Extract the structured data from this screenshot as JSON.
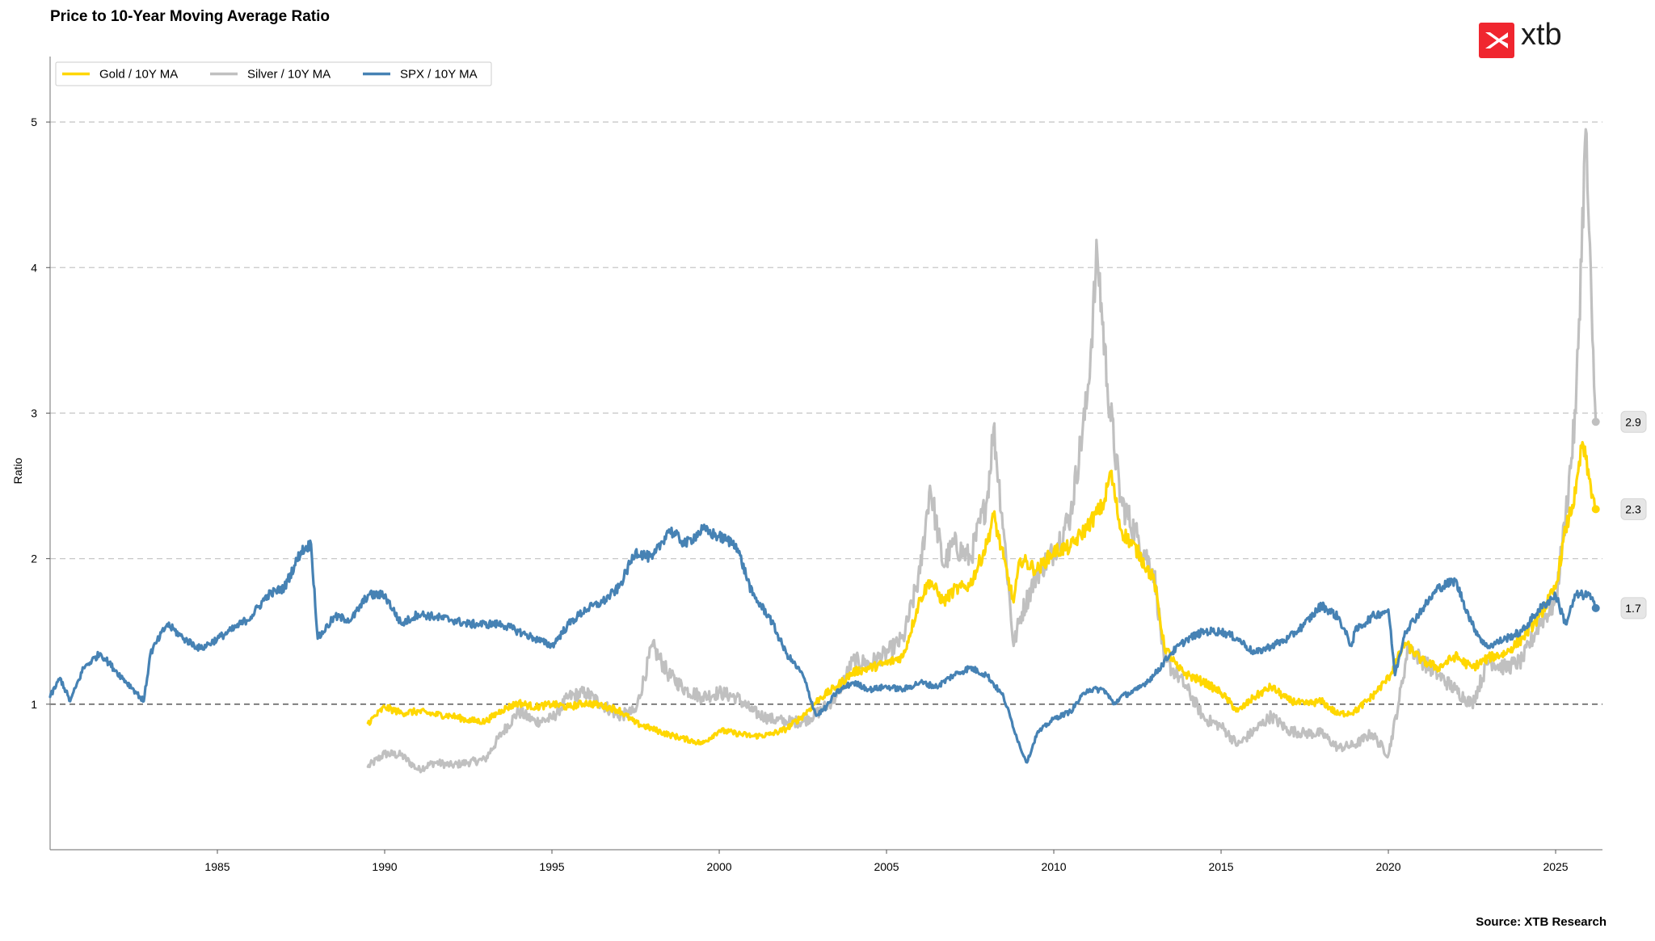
{
  "header": {
    "title": "Price to 10-Year Moving Average Ratio"
  },
  "footer": {
    "source": "Source: XTB Research"
  },
  "brand": {
    "name": "xtb",
    "color": "#f0262f"
  },
  "chart_data": {
    "type": "line",
    "title": "Price to 10-Year Moving Average Ratio",
    "xlabel": "",
    "ylabel": "Ratio",
    "xlim": [
      1980.0,
      2026.4
    ],
    "ylim": [
      0.0,
      5.45
    ],
    "xticks": [
      1985,
      1990,
      1995,
      2000,
      2005,
      2010,
      2015,
      2020,
      2025
    ],
    "xtick_labels": [
      "1985",
      "1990",
      "1995",
      "2000",
      "2005",
      "2010",
      "2015",
      "2020",
      "2025"
    ],
    "yticks": [
      1,
      2,
      3,
      4,
      5
    ],
    "ytick_labels": [
      "1",
      "2",
      "3",
      "4",
      "5"
    ],
    "grid": "horizontal dashed",
    "reference_line": {
      "y": 1,
      "style": "dashed"
    },
    "legend_position": "top-left",
    "series": [
      {
        "name": "Gold / 10Y MA",
        "color": "#FFD700",
        "end_label": "2.3",
        "points": [
          [
            1989.5,
            0.87
          ],
          [
            1990.0,
            0.98
          ],
          [
            1990.5,
            0.94
          ],
          [
            1991.0,
            0.95
          ],
          [
            1991.5,
            0.93
          ],
          [
            1992.0,
            0.92
          ],
          [
            1992.5,
            0.89
          ],
          [
            1993.0,
            0.88
          ],
          [
            1993.5,
            0.96
          ],
          [
            1994.0,
            1.01
          ],
          [
            1994.5,
            0.98
          ],
          [
            1995.0,
            1.0
          ],
          [
            1995.5,
            0.98
          ],
          [
            1996.0,
            1.01
          ],
          [
            1996.5,
            0.99
          ],
          [
            1997.0,
            0.96
          ],
          [
            1997.5,
            0.87
          ],
          [
            1998.0,
            0.83
          ],
          [
            1998.5,
            0.79
          ],
          [
            1999.0,
            0.76
          ],
          [
            1999.5,
            0.73
          ],
          [
            2000.0,
            0.82
          ],
          [
            2000.5,
            0.8
          ],
          [
            2001.0,
            0.78
          ],
          [
            2001.5,
            0.79
          ],
          [
            2002.0,
            0.83
          ],
          [
            2002.5,
            0.92
          ],
          [
            2003.0,
            1.04
          ],
          [
            2003.5,
            1.12
          ],
          [
            2004.0,
            1.22
          ],
          [
            2004.5,
            1.25
          ],
          [
            2005.0,
            1.28
          ],
          [
            2005.5,
            1.33
          ],
          [
            2006.0,
            1.72
          ],
          [
            2006.3,
            1.85
          ],
          [
            2006.7,
            1.7
          ],
          [
            2007.0,
            1.78
          ],
          [
            2007.5,
            1.82
          ],
          [
            2008.0,
            2.1
          ],
          [
            2008.2,
            2.3
          ],
          [
            2008.5,
            2.0
          ],
          [
            2008.8,
            1.7
          ],
          [
            2009.0,
            2.0
          ],
          [
            2009.5,
            1.92
          ],
          [
            2010.0,
            2.05
          ],
          [
            2010.5,
            2.08
          ],
          [
            2011.0,
            2.22
          ],
          [
            2011.5,
            2.38
          ],
          [
            2011.7,
            2.6
          ],
          [
            2012.0,
            2.2
          ],
          [
            2012.5,
            2.05
          ],
          [
            2013.0,
            1.85
          ],
          [
            2013.3,
            1.4
          ],
          [
            2013.7,
            1.25
          ],
          [
            2014.0,
            1.2
          ],
          [
            2014.5,
            1.15
          ],
          [
            2015.0,
            1.08
          ],
          [
            2015.5,
            0.95
          ],
          [
            2016.0,
            1.05
          ],
          [
            2016.5,
            1.12
          ],
          [
            2017.0,
            1.03
          ],
          [
            2017.5,
            1.0
          ],
          [
            2018.0,
            1.02
          ],
          [
            2018.5,
            0.93
          ],
          [
            2019.0,
            0.95
          ],
          [
            2019.5,
            1.05
          ],
          [
            2020.0,
            1.18
          ],
          [
            2020.5,
            1.42
          ],
          [
            2021.0,
            1.3
          ],
          [
            2021.5,
            1.25
          ],
          [
            2022.0,
            1.33
          ],
          [
            2022.5,
            1.25
          ],
          [
            2023.0,
            1.32
          ],
          [
            2023.5,
            1.35
          ],
          [
            2024.0,
            1.45
          ],
          [
            2024.5,
            1.6
          ],
          [
            2025.0,
            1.8
          ],
          [
            2025.3,
            2.2
          ],
          [
            2025.6,
            2.45
          ],
          [
            2025.8,
            2.8
          ],
          [
            2026.0,
            2.55
          ],
          [
            2026.2,
            2.34
          ]
        ]
      },
      {
        "name": "Silver / 10Y MA",
        "color": "#C0C0C0",
        "end_label": "2.9",
        "points": [
          [
            1989.5,
            0.57
          ],
          [
            1990.0,
            0.66
          ],
          [
            1990.5,
            0.65
          ],
          [
            1991.0,
            0.55
          ],
          [
            1991.5,
            0.6
          ],
          [
            1992.0,
            0.58
          ],
          [
            1992.5,
            0.6
          ],
          [
            1993.0,
            0.62
          ],
          [
            1993.5,
            0.8
          ],
          [
            1994.0,
            0.95
          ],
          [
            1994.5,
            0.88
          ],
          [
            1995.0,
            0.9
          ],
          [
            1995.5,
            1.05
          ],
          [
            1996.0,
            1.08
          ],
          [
            1996.5,
            1.0
          ],
          [
            1997.0,
            0.92
          ],
          [
            1997.5,
            0.95
          ],
          [
            1998.0,
            1.4
          ],
          [
            1998.5,
            1.2
          ],
          [
            1999.0,
            1.1
          ],
          [
            1999.5,
            1.05
          ],
          [
            2000.0,
            1.08
          ],
          [
            2000.5,
            1.05
          ],
          [
            2001.0,
            0.95
          ],
          [
            2001.5,
            0.9
          ],
          [
            2002.0,
            0.88
          ],
          [
            2002.5,
            0.88
          ],
          [
            2003.0,
            0.95
          ],
          [
            2003.5,
            1.05
          ],
          [
            2004.0,
            1.3
          ],
          [
            2004.5,
            1.28
          ],
          [
            2005.0,
            1.35
          ],
          [
            2005.5,
            1.45
          ],
          [
            2006.0,
            1.9
          ],
          [
            2006.3,
            2.5
          ],
          [
            2006.7,
            1.95
          ],
          [
            2007.0,
            2.1
          ],
          [
            2007.5,
            2.0
          ],
          [
            2008.0,
            2.4
          ],
          [
            2008.2,
            2.9
          ],
          [
            2008.5,
            2.2
          ],
          [
            2008.8,
            1.4
          ],
          [
            2009.0,
            1.6
          ],
          [
            2009.5,
            1.9
          ],
          [
            2010.0,
            2.05
          ],
          [
            2010.5,
            2.3
          ],
          [
            2011.0,
            3.1
          ],
          [
            2011.3,
            4.1
          ],
          [
            2011.6,
            3.2
          ],
          [
            2012.0,
            2.4
          ],
          [
            2012.5,
            2.15
          ],
          [
            2013.0,
            1.9
          ],
          [
            2013.3,
            1.3
          ],
          [
            2013.7,
            1.2
          ],
          [
            2014.0,
            1.1
          ],
          [
            2014.5,
            0.9
          ],
          [
            2015.0,
            0.85
          ],
          [
            2015.5,
            0.72
          ],
          [
            2016.0,
            0.82
          ],
          [
            2016.5,
            0.92
          ],
          [
            2017.0,
            0.82
          ],
          [
            2017.5,
            0.8
          ],
          [
            2018.0,
            0.8
          ],
          [
            2018.5,
            0.7
          ],
          [
            2019.0,
            0.72
          ],
          [
            2019.5,
            0.8
          ],
          [
            2020.0,
            0.65
          ],
          [
            2020.3,
            1.0
          ],
          [
            2020.6,
            1.4
          ],
          [
            2021.0,
            1.3
          ],
          [
            2021.5,
            1.2
          ],
          [
            2022.0,
            1.1
          ],
          [
            2022.5,
            1.0
          ],
          [
            2023.0,
            1.3
          ],
          [
            2023.5,
            1.25
          ],
          [
            2024.0,
            1.3
          ],
          [
            2024.5,
            1.55
          ],
          [
            2025.0,
            1.7
          ],
          [
            2025.3,
            2.3
          ],
          [
            2025.6,
            3.0
          ],
          [
            2025.9,
            4.95
          ],
          [
            2026.1,
            3.5
          ],
          [
            2026.2,
            2.94
          ]
        ]
      },
      {
        "name": "SPX / 10Y MA",
        "color": "#4682B4",
        "end_label": "1.7",
        "points": [
          [
            1980.0,
            1.05
          ],
          [
            1980.3,
            1.18
          ],
          [
            1980.6,
            1.02
          ],
          [
            1981.0,
            1.25
          ],
          [
            1981.5,
            1.35
          ],
          [
            1982.0,
            1.22
          ],
          [
            1982.5,
            1.1
          ],
          [
            1982.8,
            1.02
          ],
          [
            1983.0,
            1.35
          ],
          [
            1983.5,
            1.55
          ],
          [
            1984.0,
            1.45
          ],
          [
            1984.5,
            1.38
          ],
          [
            1985.0,
            1.45
          ],
          [
            1985.5,
            1.52
          ],
          [
            1986.0,
            1.6
          ],
          [
            1986.5,
            1.75
          ],
          [
            1987.0,
            1.8
          ],
          [
            1987.5,
            2.05
          ],
          [
            1987.8,
            2.1
          ],
          [
            1988.0,
            1.45
          ],
          [
            1988.5,
            1.6
          ],
          [
            1989.0,
            1.58
          ],
          [
            1989.5,
            1.75
          ],
          [
            1990.0,
            1.75
          ],
          [
            1990.5,
            1.55
          ],
          [
            1991.0,
            1.62
          ],
          [
            1991.5,
            1.6
          ],
          [
            1992.0,
            1.58
          ],
          [
            1992.5,
            1.55
          ],
          [
            1993.0,
            1.55
          ],
          [
            1993.5,
            1.55
          ],
          [
            1994.0,
            1.5
          ],
          [
            1994.5,
            1.45
          ],
          [
            1995.0,
            1.4
          ],
          [
            1995.5,
            1.55
          ],
          [
            1996.0,
            1.65
          ],
          [
            1996.5,
            1.7
          ],
          [
            1997.0,
            1.8
          ],
          [
            1997.5,
            2.05
          ],
          [
            1998.0,
            2.0
          ],
          [
            1998.5,
            2.2
          ],
          [
            1999.0,
            2.1
          ],
          [
            1999.5,
            2.2
          ],
          [
            2000.0,
            2.15
          ],
          [
            2000.5,
            2.1
          ],
          [
            2001.0,
            1.75
          ],
          [
            2001.5,
            1.6
          ],
          [
            2002.0,
            1.35
          ],
          [
            2002.5,
            1.2
          ],
          [
            2002.9,
            0.92
          ],
          [
            2003.2,
            0.98
          ],
          [
            2003.5,
            1.08
          ],
          [
            2004.0,
            1.15
          ],
          [
            2004.5,
            1.1
          ],
          [
            2005.0,
            1.12
          ],
          [
            2005.5,
            1.1
          ],
          [
            2006.0,
            1.15
          ],
          [
            2006.5,
            1.12
          ],
          [
            2007.0,
            1.2
          ],
          [
            2007.5,
            1.25
          ],
          [
            2008.0,
            1.2
          ],
          [
            2008.5,
            1.05
          ],
          [
            2009.0,
            0.7
          ],
          [
            2009.2,
            0.6
          ],
          [
            2009.5,
            0.8
          ],
          [
            2010.0,
            0.9
          ],
          [
            2010.5,
            0.95
          ],
          [
            2011.0,
            1.1
          ],
          [
            2011.5,
            1.1
          ],
          [
            2011.8,
            1.0
          ],
          [
            2012.0,
            1.05
          ],
          [
            2012.5,
            1.1
          ],
          [
            2013.0,
            1.2
          ],
          [
            2013.5,
            1.35
          ],
          [
            2014.0,
            1.45
          ],
          [
            2014.5,
            1.5
          ],
          [
            2015.0,
            1.5
          ],
          [
            2015.5,
            1.45
          ],
          [
            2016.0,
            1.35
          ],
          [
            2016.5,
            1.4
          ],
          [
            2017.0,
            1.45
          ],
          [
            2017.5,
            1.55
          ],
          [
            2018.0,
            1.68
          ],
          [
            2018.5,
            1.6
          ],
          [
            2018.9,
            1.4
          ],
          [
            2019.0,
            1.5
          ],
          [
            2019.5,
            1.6
          ],
          [
            2020.0,
            1.65
          ],
          [
            2020.2,
            1.2
          ],
          [
            2020.5,
            1.5
          ],
          [
            2021.0,
            1.65
          ],
          [
            2021.5,
            1.8
          ],
          [
            2022.0,
            1.85
          ],
          [
            2022.5,
            1.55
          ],
          [
            2022.9,
            1.4
          ],
          [
            2023.0,
            1.4
          ],
          [
            2023.5,
            1.45
          ],
          [
            2024.0,
            1.5
          ],
          [
            2024.5,
            1.65
          ],
          [
            2025.0,
            1.75
          ],
          [
            2025.3,
            1.55
          ],
          [
            2025.6,
            1.75
          ],
          [
            2026.0,
            1.75
          ],
          [
            2026.2,
            1.66
          ]
        ]
      }
    ]
  }
}
